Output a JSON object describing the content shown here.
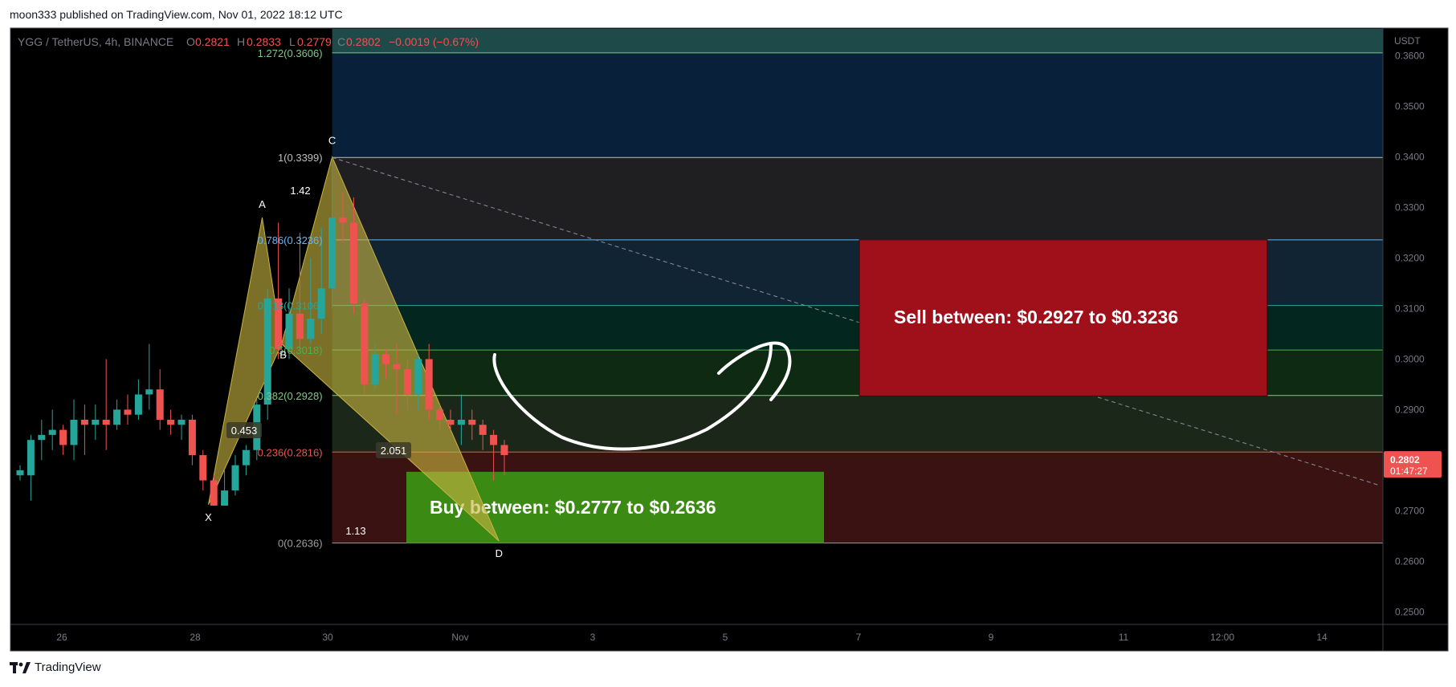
{
  "header": {
    "publisher": "moon333 published on TradingView.com, Nov 01, 2022 18:12 UTC"
  },
  "footer": {
    "brand": "TradingView",
    "logo_icon": "tradingview-logo-icon"
  },
  "legend": {
    "symbol": "YGG / TetherUS, 4h, BINANCE",
    "o_label": "O",
    "o": "0.2821",
    "h_label": "H",
    "h": "0.2833",
    "l_label": "L",
    "l": "0.2779",
    "c_label": "C",
    "c": "0.2802",
    "change": "−0.0019 (−0.67%)"
  },
  "colors": {
    "up": "#26a69a",
    "down": "#ef5350",
    "background": "#000000",
    "pattern_fill": "#c8b440",
    "buy_box": "#3a8a14",
    "sell_box": "#a0101a"
  },
  "chart_data": {
    "type": "candlestick",
    "ylabel": "USDT",
    "ylim": [
      0.2475,
      0.3655
    ],
    "y_ticks": [
      "0.2500",
      "0.2600",
      "0.2700",
      "0.2800",
      "0.2900",
      "0.3000",
      "0.3100",
      "0.3200",
      "0.3300",
      "0.3400",
      "0.3500",
      "0.3600"
    ],
    "x_ticks": [
      "26",
      "28",
      "30",
      "Nov",
      "3",
      "5",
      "7",
      "9",
      "11",
      "12:00",
      "14"
    ],
    "last_price": {
      "price": "0.2802",
      "countdown": "01:47:27"
    },
    "candles": [
      [
        0.277,
        0.278,
        0.276,
        0.279
      ],
      [
        0.277,
        0.284,
        0.272,
        0.285
      ],
      [
        0.284,
        0.285,
        0.28,
        0.288
      ],
      [
        0.285,
        0.286,
        0.282,
        0.29
      ],
      [
        0.286,
        0.283,
        0.281,
        0.287
      ],
      [
        0.283,
        0.288,
        0.28,
        0.292
      ],
      [
        0.288,
        0.287,
        0.281,
        0.291
      ],
      [
        0.287,
        0.288,
        0.284,
        0.291
      ],
      [
        0.288,
        0.287,
        0.282,
        0.3
      ],
      [
        0.287,
        0.29,
        0.286,
        0.292
      ],
      [
        0.29,
        0.289,
        0.287,
        0.293
      ],
      [
        0.289,
        0.293,
        0.288,
        0.296
      ],
      [
        0.293,
        0.294,
        0.29,
        0.303
      ],
      [
        0.294,
        0.288,
        0.286,
        0.298
      ],
      [
        0.288,
        0.287,
        0.285,
        0.29
      ],
      [
        0.287,
        0.288,
        0.284,
        0.289
      ],
      [
        0.288,
        0.281,
        0.279,
        0.289
      ],
      [
        0.281,
        0.276,
        0.274,
        0.282
      ],
      [
        0.276,
        0.271,
        0.271,
        0.277
      ],
      [
        0.271,
        0.274,
        0.271,
        0.278
      ],
      [
        0.274,
        0.279,
        0.273,
        0.281
      ],
      [
        0.279,
        0.282,
        0.277,
        0.283
      ],
      [
        0.282,
        0.291,
        0.28,
        0.292
      ],
      [
        0.291,
        0.312,
        0.288,
        0.314
      ],
      [
        0.312,
        0.302,
        0.3,
        0.327
      ],
      [
        0.302,
        0.309,
        0.3,
        0.314
      ],
      [
        0.309,
        0.304,
        0.302,
        0.325
      ],
      [
        0.304,
        0.308,
        0.303,
        0.32
      ],
      [
        0.308,
        0.314,
        0.305,
        0.326
      ],
      [
        0.314,
        0.328,
        0.31,
        0.34
      ],
      [
        0.328,
        0.327,
        0.323,
        0.333
      ],
      [
        0.327,
        0.311,
        0.309,
        0.332
      ],
      [
        0.311,
        0.295,
        0.293,
        0.312
      ],
      [
        0.295,
        0.301,
        0.294,
        0.303
      ],
      [
        0.301,
        0.299,
        0.296,
        0.302
      ],
      [
        0.299,
        0.298,
        0.289,
        0.303
      ],
      [
        0.298,
        0.293,
        0.29,
        0.3
      ],
      [
        0.293,
        0.3,
        0.29,
        0.301
      ],
      [
        0.3,
        0.29,
        0.288,
        0.303
      ],
      [
        0.29,
        0.288,
        0.286,
        0.291
      ],
      [
        0.288,
        0.287,
        0.286,
        0.29
      ],
      [
        0.287,
        0.288,
        0.283,
        0.293
      ],
      [
        0.288,
        0.287,
        0.284,
        0.29
      ],
      [
        0.287,
        0.285,
        0.282,
        0.288
      ],
      [
        0.285,
        0.283,
        0.276,
        0.286
      ],
      [
        0.283,
        0.281,
        0.277,
        0.284
      ]
    ],
    "fib_levels": [
      {
        "label": "1.272(0.3606)",
        "price": 0.3606,
        "color": "#81c784"
      },
      {
        "label": "1(0.3399)",
        "price": 0.3399,
        "color": "#bdbdbd"
      },
      {
        "label": "0.786(0.3236)",
        "price": 0.3236,
        "color": "#64b5f6"
      },
      {
        "label": "0.618(0.3106)",
        "price": 0.3106,
        "color": "#26a69a"
      },
      {
        "label": "0.5(0.3018)",
        "price": 0.3018,
        "color": "#4caf50"
      },
      {
        "label": "0.382(0.2928)",
        "price": 0.2928,
        "color": "#81c784"
      },
      {
        "label": "0.236(0.2816)",
        "price": 0.2816,
        "color": "#ef5350"
      },
      {
        "label": "0(0.2636)",
        "price": 0.2636,
        "color": "#9e9e9e"
      }
    ],
    "harmonic": {
      "points": [
        {
          "label": "X",
          "bar": 17.5,
          "price": 0.2712
        },
        {
          "label": "A",
          "bar": 22.5,
          "price": 0.328
        },
        {
          "label": "B",
          "bar": 24.3,
          "price": 0.303
        },
        {
          "label": "C",
          "bar": 29.0,
          "price": 0.34
        },
        {
          "label": "D",
          "bar": 44.5,
          "price": 0.264
        }
      ],
      "ratios": [
        {
          "label": "0.453"
        },
        {
          "label": "1.42"
        },
        {
          "label": "2.051"
        },
        {
          "label": "1.13"
        }
      ]
    },
    "annotations": {
      "buy": {
        "text": "Buy between: $0.2777 to $0.2636",
        "top": 0.2777,
        "bottom": 0.2636
      },
      "sell": {
        "text": "Sell between: $0.2927 to $0.3236",
        "top": 0.3236,
        "bottom": 0.2927
      }
    }
  }
}
